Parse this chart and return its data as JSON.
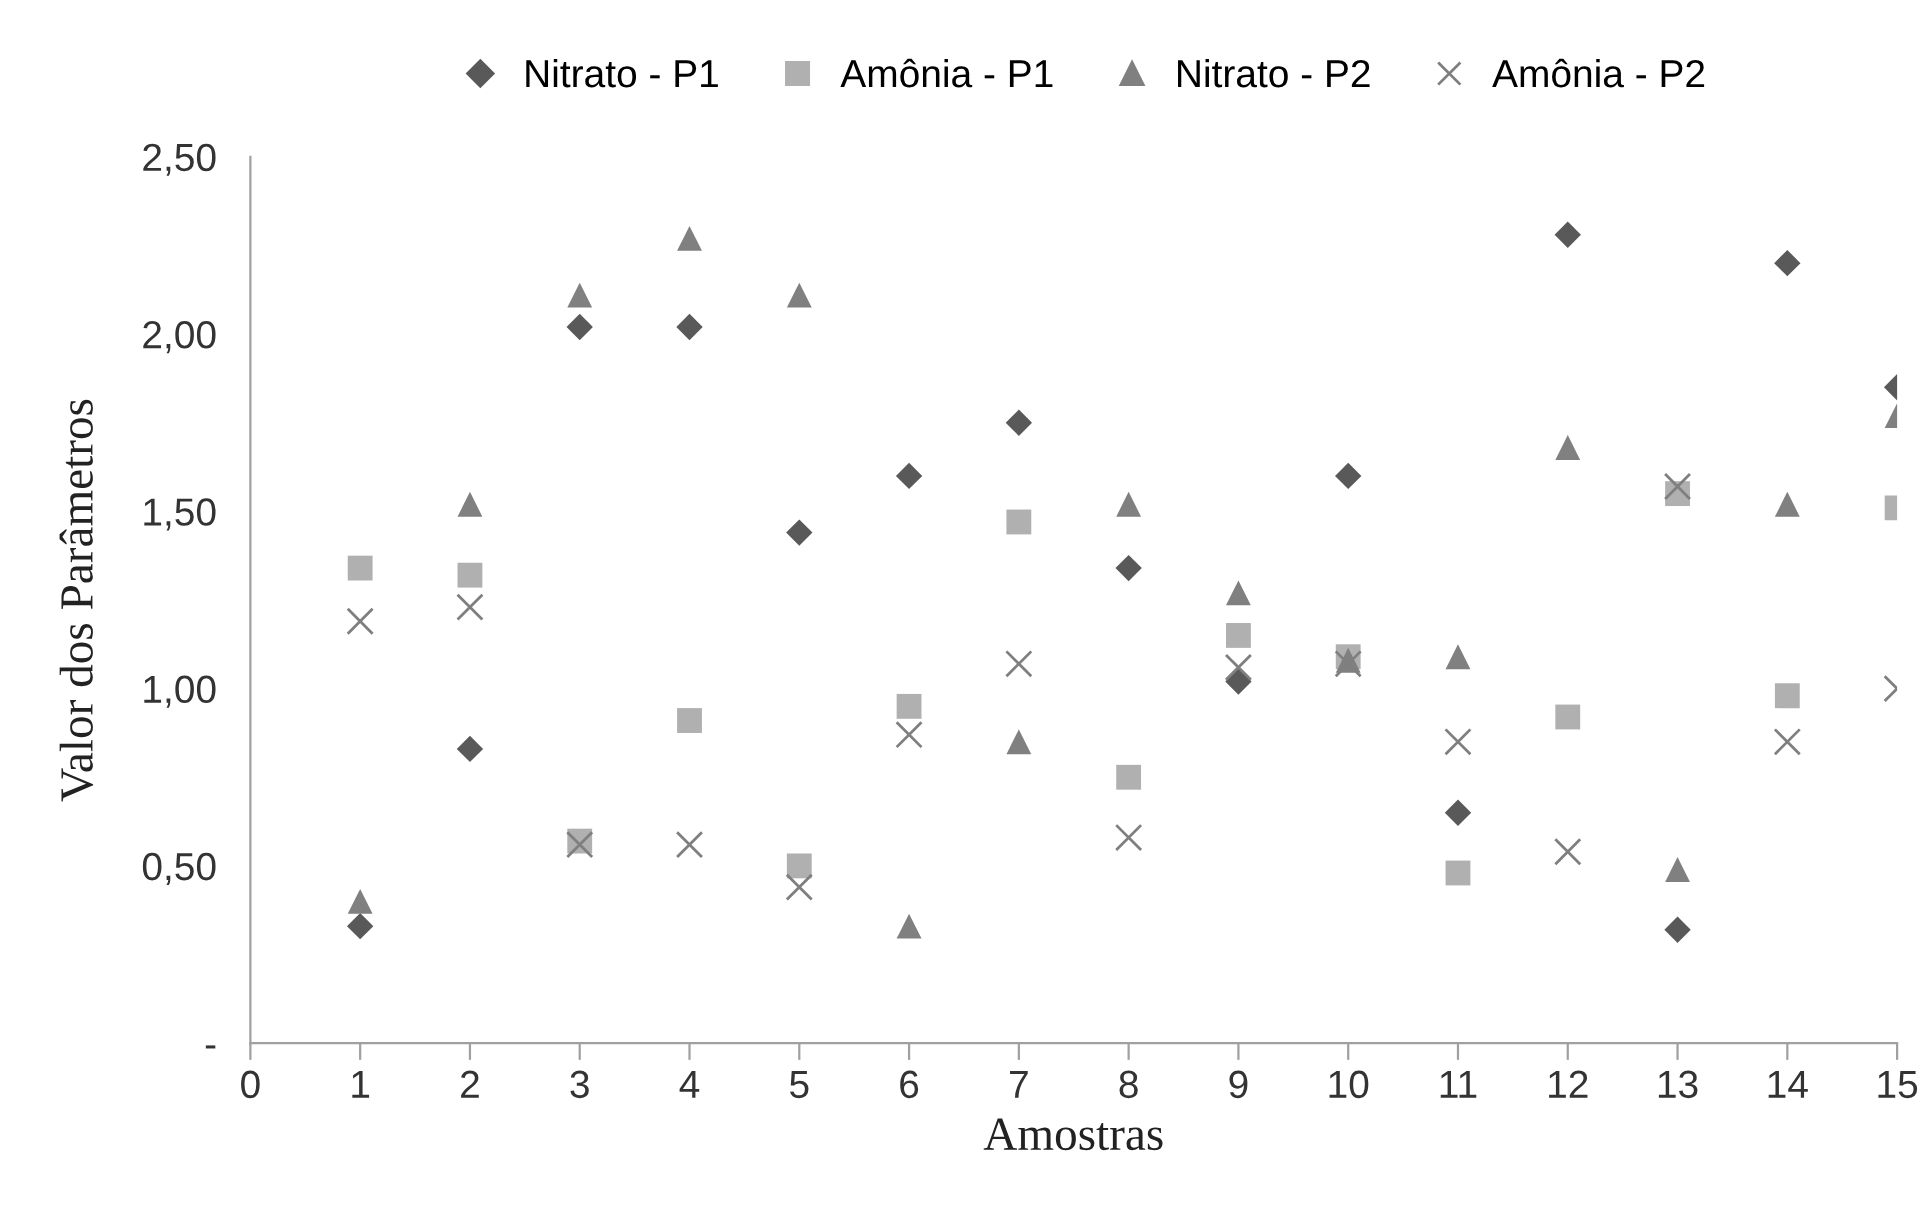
{
  "chart_data": {
    "type": "scatter",
    "xlabel": "Amostras",
    "ylabel": "Valor dos Parâmetros",
    "x": [
      1,
      2,
      3,
      4,
      5,
      6,
      7,
      8,
      9,
      10,
      11,
      12,
      13,
      14,
      15
    ],
    "series": [
      {
        "name": "Nitrato - P1",
        "color": "#595959",
        "marker": "diamond",
        "values": [
          0.33,
          0.83,
          2.02,
          2.02,
          1.44,
          1.6,
          1.75,
          1.34,
          1.02,
          1.6,
          0.65,
          2.28,
          0.32,
          2.2,
          1.85
        ]
      },
      {
        "name": "Amônia - P1",
        "color": "#b0b0b0",
        "marker": "square",
        "values": [
          1.34,
          1.32,
          0.57,
          0.91,
          0.5,
          0.95,
          1.47,
          0.75,
          1.15,
          1.09,
          0.48,
          0.92,
          1.55,
          0.98,
          1.51
        ]
      },
      {
        "name": "Nitrato - P2",
        "color": "#808080",
        "marker": "triangle",
        "values": [
          0.4,
          1.52,
          2.11,
          2.27,
          2.11,
          0.33,
          0.85,
          1.52,
          1.27,
          1.08,
          1.09,
          1.68,
          0.49,
          1.52,
          1.77
        ]
      },
      {
        "name": "Amônia - P2",
        "color": "#7f7f7f",
        "marker": "cross",
        "values": [
          1.19,
          1.23,
          0.56,
          0.56,
          0.44,
          0.87,
          1.07,
          0.58,
          1.06,
          1.07,
          0.85,
          0.54,
          1.57,
          0.85,
          1.0
        ]
      }
    ],
    "xlim": [
      0,
      15
    ],
    "xticks": [
      0,
      1,
      2,
      3,
      4,
      5,
      6,
      7,
      8,
      9,
      10,
      11,
      12,
      13,
      14,
      15
    ],
    "ylim": [
      0,
      2.5
    ],
    "yticks": [
      {
        "value": 0,
        "label": "-"
      },
      {
        "value": 0.5,
        "label": "0,50"
      },
      {
        "value": 1.0,
        "label": "1,00"
      },
      {
        "value": 1.5,
        "label": "1,50"
      },
      {
        "value": 2.0,
        "label": "2,00"
      },
      {
        "value": 2.5,
        "label": "2,50"
      }
    ],
    "grid": false,
    "legend": "top"
  }
}
